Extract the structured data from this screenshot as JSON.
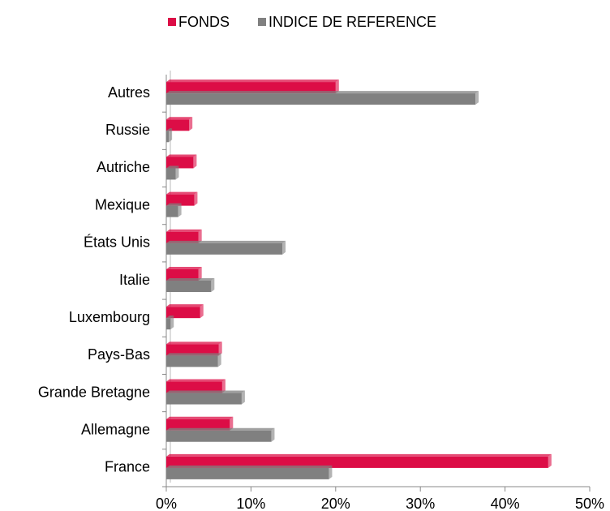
{
  "chart_data": {
    "type": "barh",
    "categories": [
      "France",
      "Allemagne",
      "Grande Bretagne",
      "Pays-Bas",
      "Luxembourg",
      "Italie",
      "États Unis",
      "Mexique",
      "Autriche",
      "Russie",
      "Autres"
    ],
    "series": [
      {
        "name": "FONDS",
        "color": "#dc0d46",
        "values": [
          45.1,
          7.5,
          6.6,
          6.2,
          4.0,
          3.8,
          3.8,
          3.3,
          3.2,
          2.7,
          20.0
        ]
      },
      {
        "name": "INDICE DE REFERENCE",
        "color": "#808080",
        "values": [
          19.2,
          12.4,
          8.9,
          6.1,
          0.5,
          5.3,
          13.7,
          1.4,
          1.1,
          0.3,
          36.5
        ]
      }
    ],
    "xlim": [
      0,
      50
    ],
    "xticks": [
      {
        "value": 0,
        "label": "0%"
      },
      {
        "value": 10,
        "label": "10%"
      },
      {
        "value": 20,
        "label": "20%"
      },
      {
        "value": 30,
        "label": "30%"
      },
      {
        "value": 40,
        "label": "40%"
      },
      {
        "value": 50,
        "label": "50%"
      }
    ],
    "legend": "top"
  }
}
